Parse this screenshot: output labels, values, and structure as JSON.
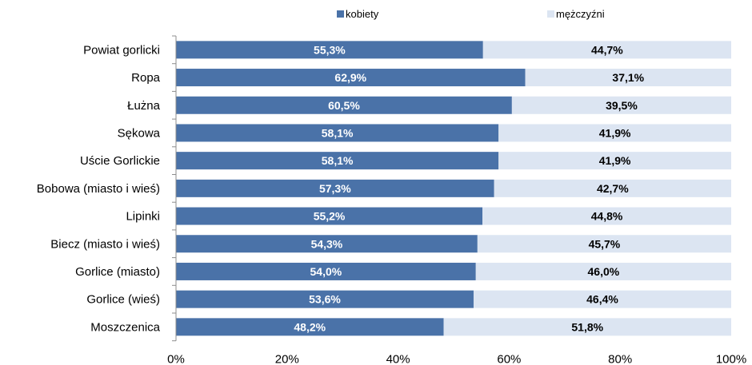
{
  "chart_data": {
    "type": "bar",
    "orientation": "horizontal",
    "stacked": "percent",
    "categories": [
      "Powiat gorlicki",
      "Ropa",
      "Łużna",
      "Sękowa",
      "Uście Gorlickie",
      "Bobowa (miasto  i wieś)",
      "Lipinki",
      "Biecz (miasto  i wieś)",
      "Gorlice (miasto)",
      "Gorlice (wieś)",
      "Moszczenica"
    ],
    "series": [
      {
        "name": "kobiety",
        "color": "#4a72a8",
        "values": [
          55.3,
          62.9,
          60.5,
          58.1,
          58.1,
          57.3,
          55.2,
          54.3,
          54.0,
          53.6,
          48.2
        ],
        "labels": [
          "55,3%",
          "62,9%",
          "60,5%",
          "58,1%",
          "58,1%",
          "57,3%",
          "55,2%",
          "54,3%",
          "54,0%",
          "53,6%",
          "48,2%"
        ]
      },
      {
        "name": "mężczyźni",
        "color": "#dce5f2",
        "values": [
          44.7,
          37.1,
          39.5,
          41.9,
          41.9,
          42.7,
          44.8,
          45.7,
          46.0,
          46.4,
          51.8
        ],
        "labels": [
          "44,7%",
          "37,1%",
          "39,5%",
          "41,9%",
          "41,9%",
          "42,7%",
          "44,8%",
          "45,7%",
          "46,0%",
          "46,4%",
          "51,8%"
        ]
      }
    ],
    "xlim": [
      0,
      100
    ],
    "x_ticks": [
      "0%",
      "20%",
      "40%",
      "60%",
      "80%",
      "100%"
    ],
    "grid": false,
    "legend": "top"
  }
}
